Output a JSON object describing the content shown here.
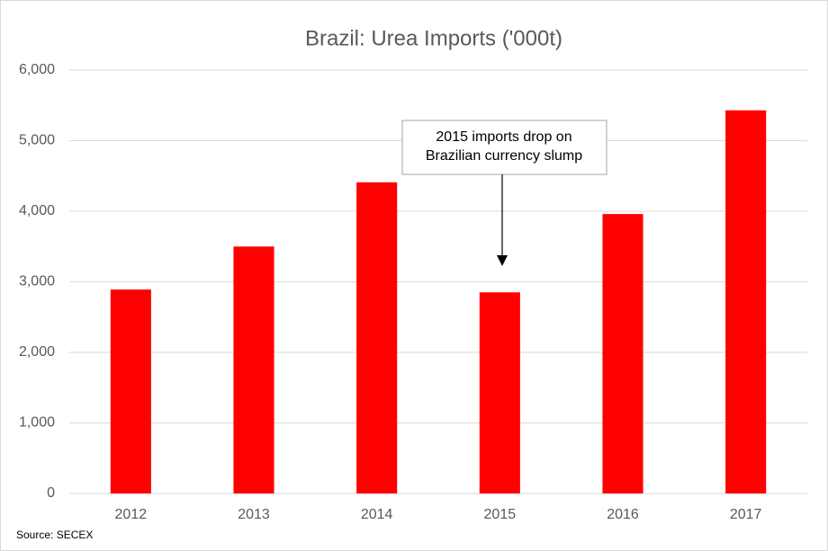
{
  "chart_data": {
    "type": "bar",
    "title": "Brazil: Urea Imports ('000t)",
    "categories": [
      "2012",
      "2013",
      "2014",
      "2015",
      "2016",
      "2017"
    ],
    "values": [
      2890,
      3500,
      4410,
      2850,
      3960,
      5430
    ],
    "color": "#ff0000",
    "ylim": [
      0,
      6000
    ],
    "yticks": [
      0,
      {
        "value": 1000,
        "label": "1,000"
      },
      {
        "value": 2000,
        "label": "2,000"
      },
      {
        "value": 3000,
        "label": "3,000"
      },
      {
        "value": 4000,
        "label": "4,000"
      },
      {
        "value": 5000,
        "label": "5,000"
      },
      {
        "value": 6000,
        "label": "6,000"
      }
    ],
    "grid": true,
    "annotation": [
      "2015 imports drop on",
      "Brazilian currency slump"
    ],
    "source": "Source: SECEX"
  }
}
